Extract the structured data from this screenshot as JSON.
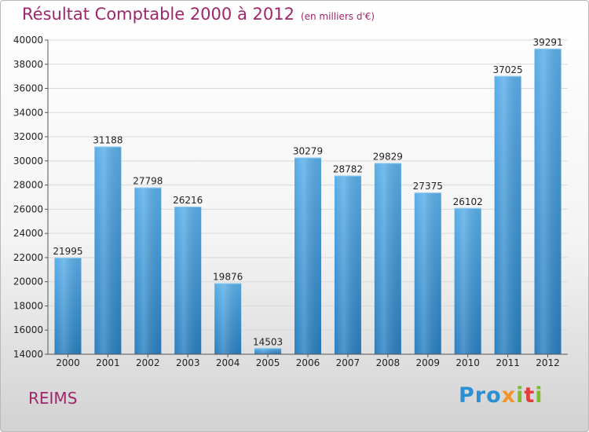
{
  "title": "Résultat Comptable 2000 à 2012",
  "unit": "(en milliers d'€)",
  "city": "REIMS",
  "logo": {
    "part1": "Pro",
    "part2": "x",
    "part3": "i",
    "part4": "t",
    "part5": "i"
  },
  "colors": {
    "bar_top": "#5aaee8",
    "bar_bottom": "#2a7fc0",
    "title": "#a0266b",
    "grid": "#d9d9d9"
  },
  "chart_data": {
    "type": "bar",
    "categories": [
      "2000",
      "2001",
      "2002",
      "2003",
      "2004",
      "2005",
      "2006",
      "2007",
      "2008",
      "2009",
      "2010",
      "2011",
      "2012"
    ],
    "values": [
      21995,
      31188,
      27798,
      26216,
      19876,
      14503,
      30279,
      28782,
      29829,
      27375,
      26102,
      37025,
      39291
    ],
    "ylim": [
      14000,
      40000
    ],
    "yticks": [
      14000,
      16000,
      18000,
      20000,
      22000,
      24000,
      26000,
      28000,
      30000,
      32000,
      34000,
      36000,
      38000,
      40000
    ],
    "xlabel": "",
    "ylabel": "",
    "grid": true
  }
}
